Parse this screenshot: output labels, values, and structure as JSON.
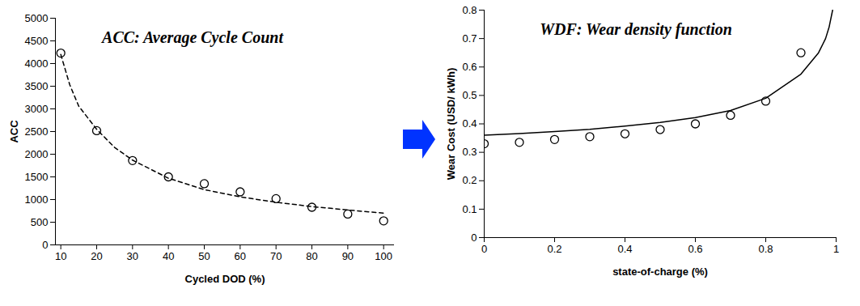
{
  "chart_data": [
    {
      "type": "scatter",
      "annotation": "ACC: Average Cycle Count",
      "xlabel": "Cycled DOD (%)",
      "ylabel": "ACC",
      "xlim": [
        8.5,
        103
      ],
      "xticks": [
        10,
        20,
        30,
        40,
        50,
        60,
        70,
        80,
        90,
        100
      ],
      "ylim": [
        0,
        5000
      ],
      "yticks": [
        0,
        500,
        1000,
        1500,
        2000,
        2500,
        3000,
        3500,
        4000,
        4500,
        5000
      ],
      "grid": false,
      "series": [
        {
          "type": "scatter",
          "marker": "circle",
          "color": "#000000",
          "x": [
            10,
            20,
            30,
            40,
            50,
            60,
            70,
            80,
            90,
            100
          ],
          "values": [
            4230,
            2520,
            1860,
            1500,
            1350,
            1170,
            1020,
            830,
            680,
            530
          ]
        },
        {
          "type": "line",
          "line_style": "dashed",
          "color": "#000000",
          "x": [
            10,
            12.5,
            15,
            20,
            25,
            30,
            40,
            50,
            60,
            70,
            80,
            90,
            100
          ],
          "values": [
            4200,
            3530,
            3060,
            2550,
            2150,
            1870,
            1470,
            1220,
            1060,
            940,
            845,
            770,
            700
          ]
        }
      ]
    },
    {
      "type": "scatter",
      "annotation": "WDF: Wear density function",
      "xlabel": "state-of-charge (%)",
      "ylabel": "Wear Cost (USD/ kWh)",
      "xlim": [
        0,
        1
      ],
      "xticks": [
        0,
        0.2,
        0.4,
        0.6,
        0.8,
        1
      ],
      "ylim": [
        0,
        0.8
      ],
      "yticks": [
        0,
        0.1,
        0.2,
        0.3,
        0.4,
        0.5,
        0.6,
        0.7,
        0.8
      ],
      "grid": false,
      "series": [
        {
          "type": "scatter",
          "marker": "circle",
          "color": "#000000",
          "x": [
            0,
            0.1,
            0.2,
            0.3,
            0.4,
            0.5,
            0.6,
            0.7,
            0.8,
            0.9
          ],
          "values": [
            0.33,
            0.335,
            0.345,
            0.355,
            0.365,
            0.38,
            0.4,
            0.43,
            0.48,
            0.65
          ]
        },
        {
          "type": "line",
          "line_style": "solid",
          "color": "#000000",
          "x": [
            0,
            0.1,
            0.2,
            0.3,
            0.4,
            0.5,
            0.6,
            0.7,
            0.8,
            0.9,
            0.95,
            0.97,
            0.98,
            0.99
          ],
          "values": [
            0.36,
            0.366,
            0.373,
            0.381,
            0.392,
            0.405,
            0.422,
            0.447,
            0.49,
            0.575,
            0.65,
            0.7,
            0.74,
            0.8
          ]
        }
      ]
    }
  ]
}
